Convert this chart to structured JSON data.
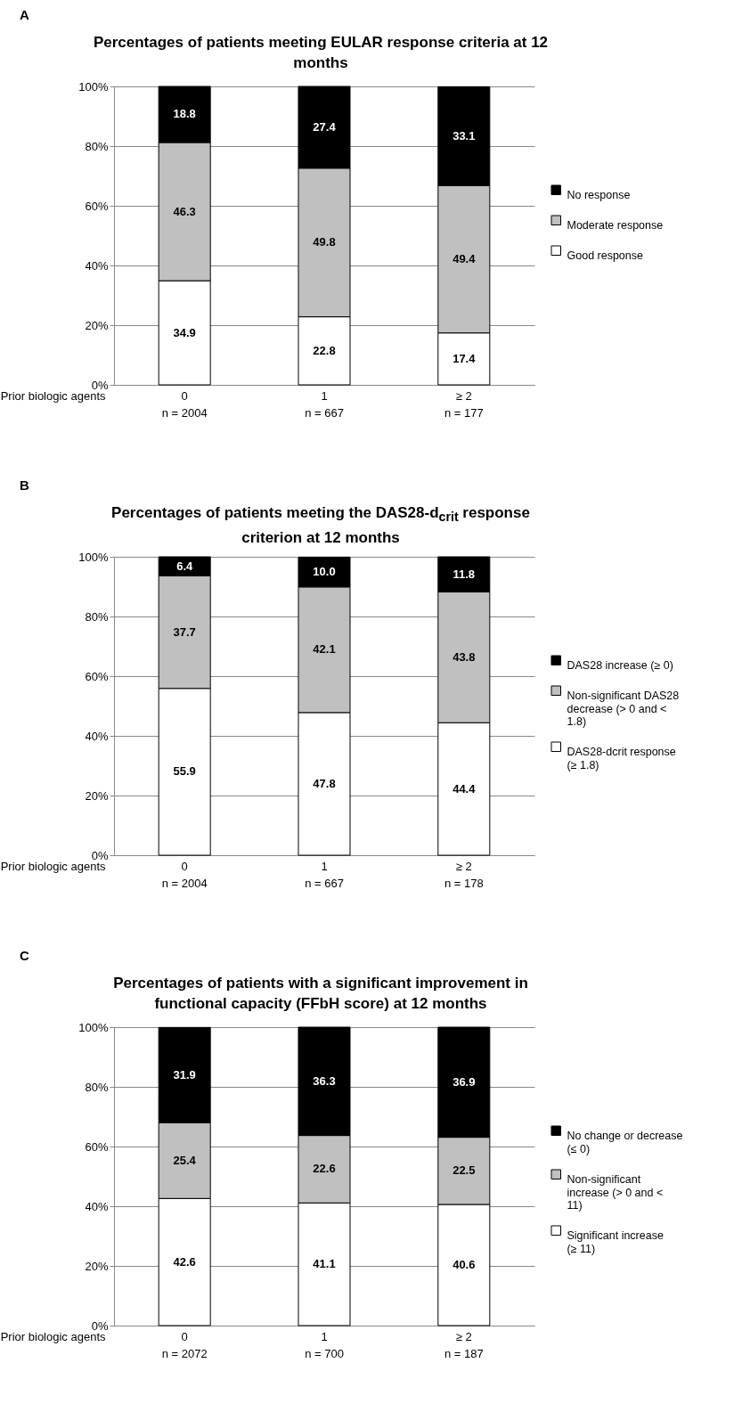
{
  "chart_data": [
    {
      "type": "bar",
      "stacked": true,
      "title": "Percentages of patients meeting EULAR response criteria at 12 months",
      "xlabel": "Prior biologic agents",
      "annotations": [
        "A"
      ],
      "categories": [
        "0\nn = 2004",
        "1\nn = 667",
        "≥ 2\nn = 177"
      ],
      "series": [
        {
          "name": "Good response",
          "color": "#ffffff",
          "values": [
            34.9,
            22.8,
            17.4
          ]
        },
        {
          "name": "Moderate response",
          "color": "#c0c0c0",
          "values": [
            46.3,
            49.8,
            49.4
          ]
        },
        {
          "name": "No response",
          "color": "#000000",
          "values": [
            18.8,
            27.4,
            33.1
          ]
        }
      ],
      "ylim": [
        0,
        100
      ],
      "yticks": [
        {
          "value": 0,
          "label": "0%"
        },
        {
          "value": 20,
          "label": "20%"
        },
        {
          "value": 40,
          "label": "40%"
        },
        {
          "value": 60,
          "label": "60%"
        },
        {
          "value": 80,
          "label": "80%"
        },
        {
          "value": 100,
          "label": "100%"
        }
      ],
      "grid": "y",
      "legend": "right",
      "data_labels": true
    },
    {
      "type": "bar",
      "stacked": true,
      "title": "Percentages of patients meeting the DAS28-d$_{crit}$ response criterion at 12 months",
      "xlabel": "Prior biologic agents",
      "annotations": [
        "B"
      ],
      "categories": [
        "0\nn = 2004",
        "1\nn = 667",
        "≥ 2\nn = 178"
      ],
      "series": [
        {
          "name": "DAS28-dcrit  response (≥ 1.8)",
          "color": "#ffffff",
          "values": [
            55.9,
            47.8,
            44.4
          ]
        },
        {
          "name": "Non-significant DAS28 decrease (> 0 and < 1.8)",
          "color": "#c0c0c0",
          "values": [
            37.7,
            42.1,
            43.8
          ]
        },
        {
          "name": "DAS28 increase (≥ 0)",
          "color": "#000000",
          "values": [
            6.4,
            10.0,
            11.8
          ],
          "value_labels": [
            "6.4",
            "10.0",
            "11.8"
          ]
        }
      ],
      "ylim": [
        0,
        100
      ],
      "yticks": [
        {
          "value": 0,
          "label": "0%"
        },
        {
          "value": 20,
          "label": "20%"
        },
        {
          "value": 40,
          "label": "40%"
        },
        {
          "value": 60,
          "label": "60%"
        },
        {
          "value": 80,
          "label": "80%"
        },
        {
          "value": 100,
          "label": "100%"
        }
      ],
      "grid": "y",
      "legend": "right",
      "data_labels": true
    },
    {
      "type": "bar",
      "stacked": true,
      "title": "Percentages of patients with a significant improvement in functional capacity (FFbH score) at 12 months",
      "xlabel": "Prior biologic agents",
      "annotations": [
        "C"
      ],
      "categories": [
        "0\nn = 2072",
        "1\nn = 700",
        "≥ 2\nn = 187"
      ],
      "series": [
        {
          "name": "Significant increase (≥ 11)",
          "color": "#ffffff",
          "values": [
            42.6,
            41.1,
            40.6
          ]
        },
        {
          "name": "Non-significant increase (> 0 and < 11)",
          "color": "#c0c0c0",
          "values": [
            25.4,
            22.6,
            22.5
          ]
        },
        {
          "name": "No change or decrease (≤ 0)",
          "color": "#000000",
          "values": [
            31.9,
            36.3,
            36.9
          ]
        }
      ],
      "ylim": [
        0,
        100
      ],
      "yticks": [
        {
          "value": 0,
          "label": "0%"
        },
        {
          "value": 20,
          "label": "20%"
        },
        {
          "value": 40,
          "label": "40%"
        },
        {
          "value": 60,
          "label": "60%"
        },
        {
          "value": 80,
          "label": "80%"
        },
        {
          "value": 100,
          "label": "100%"
        }
      ],
      "grid": "y",
      "legend": "right",
      "data_labels": true
    }
  ]
}
